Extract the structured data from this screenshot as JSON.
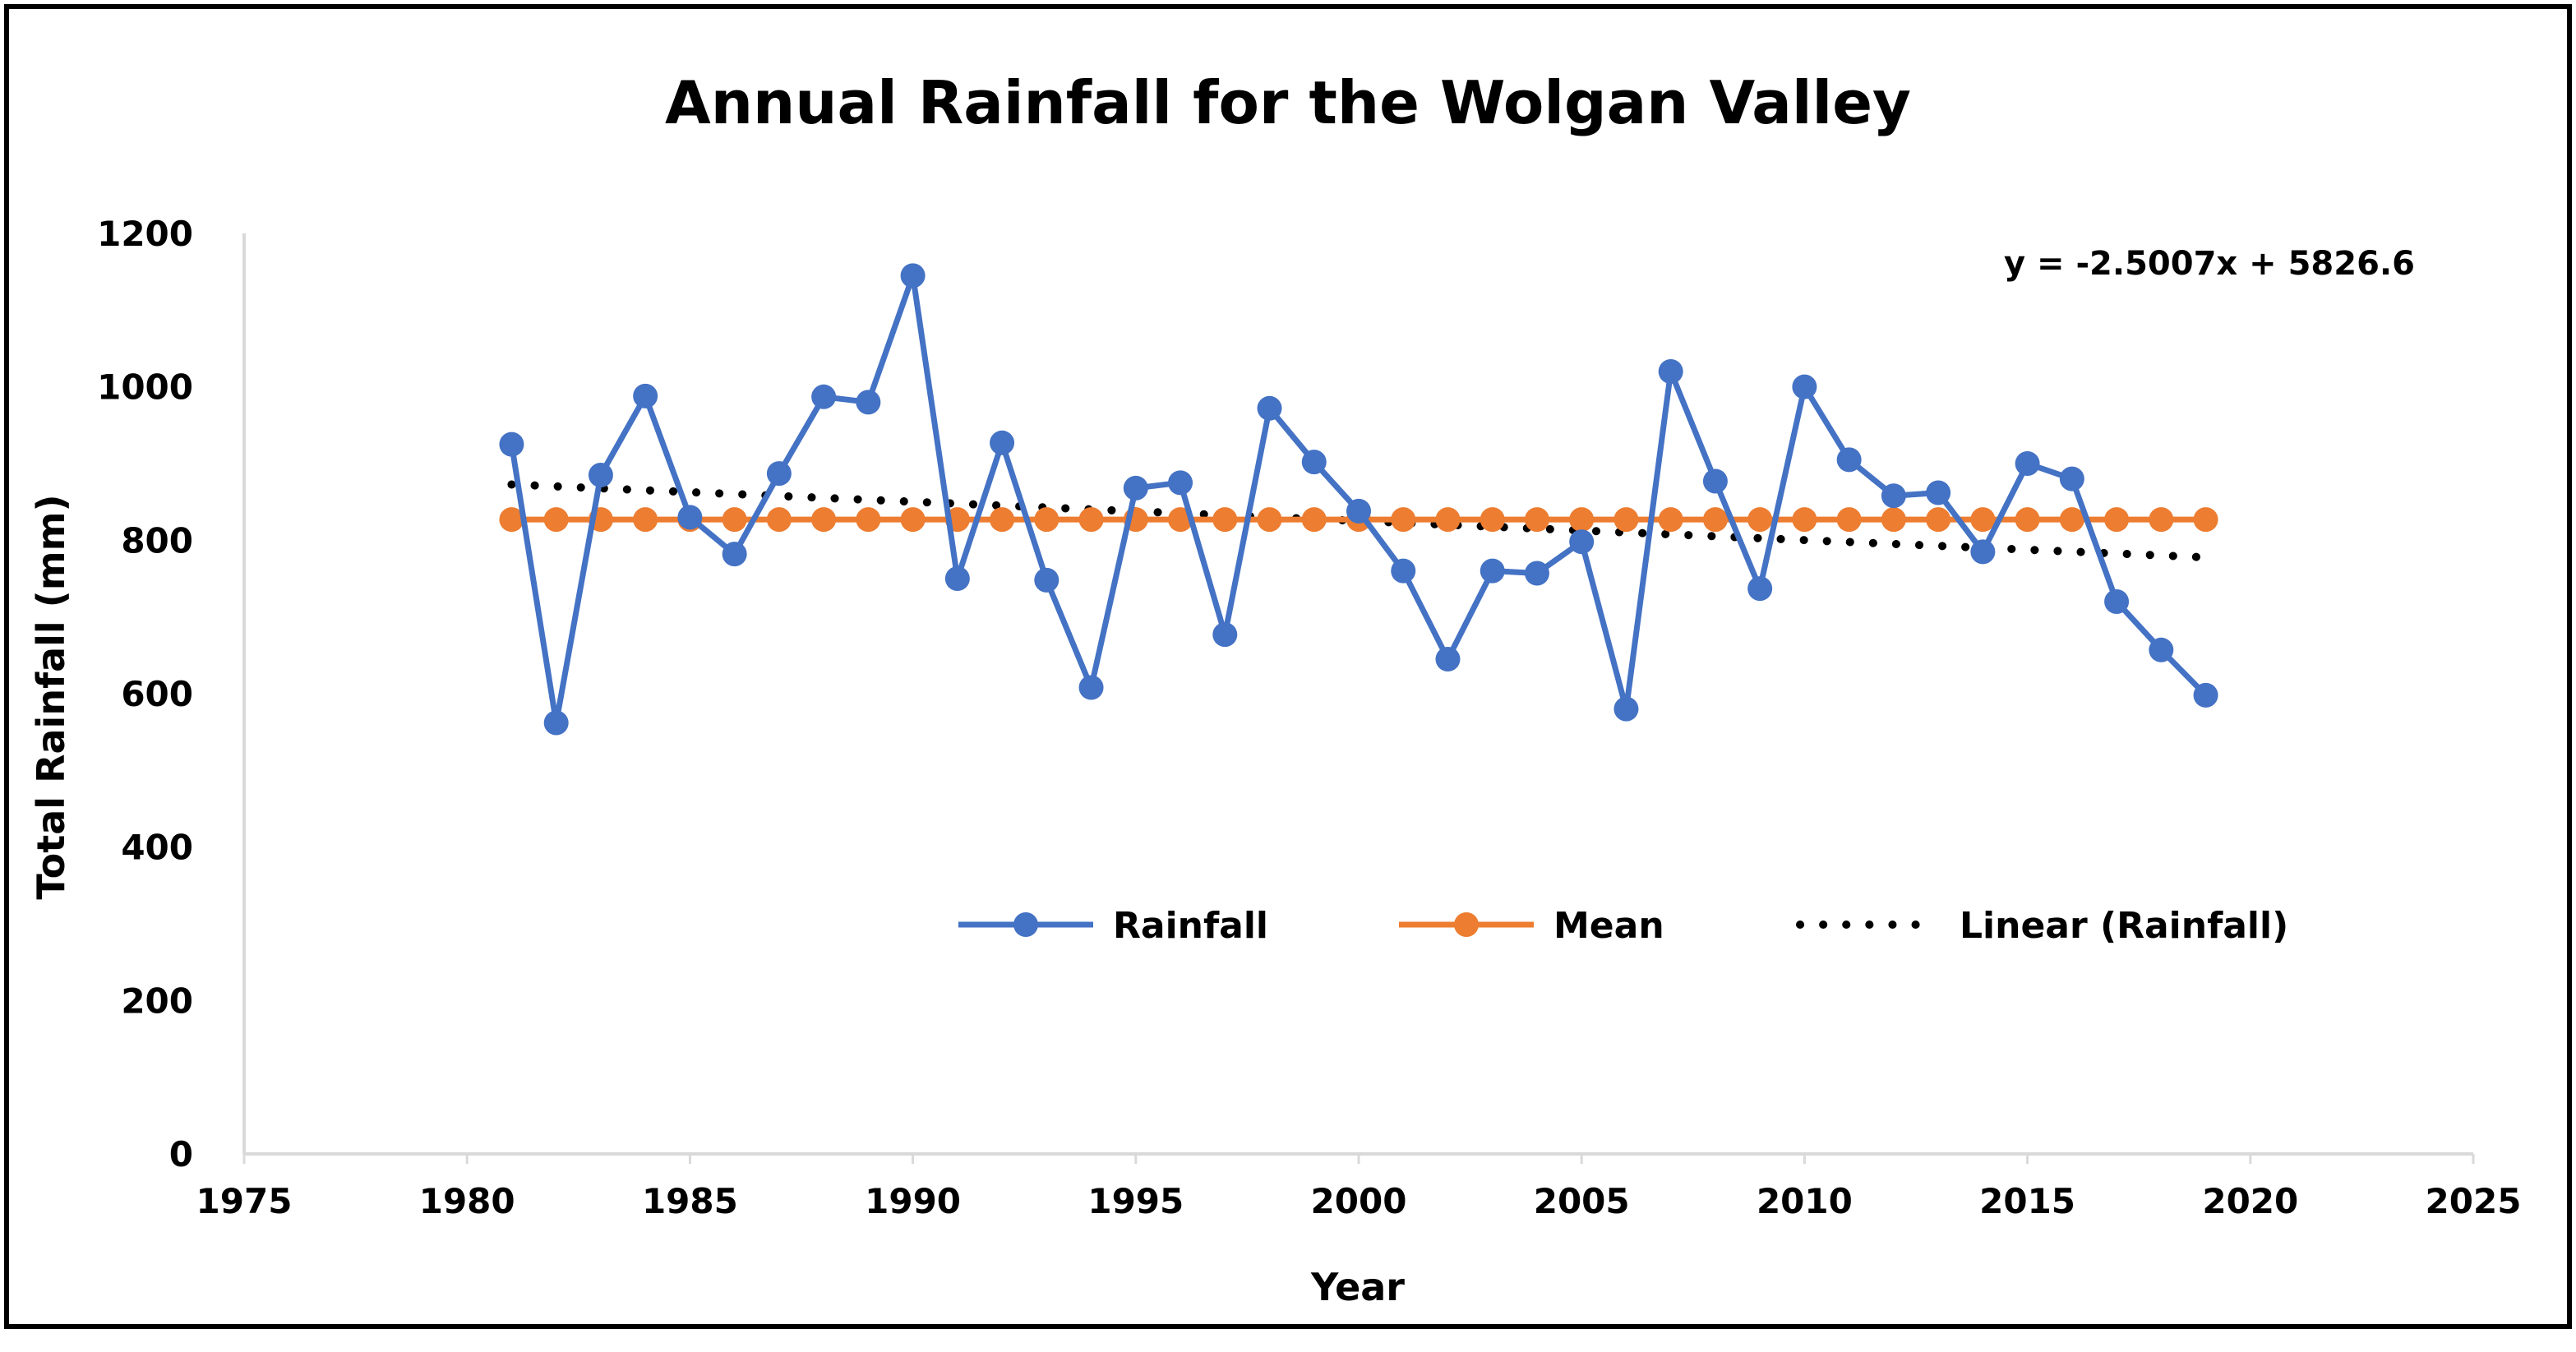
{
  "chart_data": {
    "type": "line",
    "title": "Annual Rainfall for the Wolgan Valley",
    "xlabel": "Year",
    "ylabel": "Total Rainfall (mm)",
    "xlim": [
      1975,
      2025
    ],
    "ylim": [
      0,
      1200
    ],
    "x_ticks": [
      1975,
      1980,
      1985,
      1990,
      1995,
      2000,
      2005,
      2010,
      2015,
      2020,
      2025
    ],
    "y_ticks": [
      0,
      200,
      400,
      600,
      800,
      1000,
      1200
    ],
    "x_tick_labels": [
      "1975",
      "1980",
      "1985",
      "1990",
      "1995",
      "2000",
      "2005",
      "2010",
      "2015",
      "2020",
      "2025"
    ],
    "y_tick_labels": [
      "0",
      "200",
      "400",
      "600",
      "800",
      "1000",
      "1200"
    ],
    "grid": false,
    "legend_position": "center",
    "trendline_equation": "y = -2.5007x + 5826.6",
    "trendline": {
      "slope": -2.5007,
      "intercept": 5826.6,
      "x_start": 1981,
      "x_end": 2019
    },
    "x": [
      1981,
      1982,
      1983,
      1984,
      1985,
      1986,
      1987,
      1988,
      1989,
      1990,
      1991,
      1992,
      1993,
      1994,
      1995,
      1996,
      1997,
      1998,
      1999,
      2000,
      2001,
      2002,
      2003,
      2004,
      2005,
      2006,
      2007,
      2008,
      2009,
      2010,
      2011,
      2012,
      2013,
      2014,
      2015,
      2016,
      2017,
      2018,
      2019
    ],
    "series": [
      {
        "name": "Rainfall",
        "color": "#4472C4",
        "marker": "circle",
        "values": [
          925,
          562,
          885,
          988,
          830,
          782,
          887,
          987,
          980,
          1145,
          750,
          927,
          748,
          608,
          868,
          875,
          677,
          972,
          902,
          838,
          760,
          645,
          760,
          757,
          798,
          580,
          1020,
          877,
          737,
          1000,
          905,
          858,
          862,
          785,
          900,
          880,
          720,
          657,
          598
        ]
      },
      {
        "name": "Mean",
        "color": "#ED7D31",
        "marker": "circle",
        "values": [
          827,
          827,
          827,
          827,
          827,
          827,
          827,
          827,
          827,
          827,
          827,
          827,
          827,
          827,
          827,
          827,
          827,
          827,
          827,
          827,
          827,
          827,
          827,
          827,
          827,
          827,
          827,
          827,
          827,
          827,
          827,
          827,
          827,
          827,
          827,
          827,
          827,
          827,
          827
        ]
      }
    ],
    "legend": [
      {
        "label": "Rainfall",
        "color": "#4472C4",
        "style": "line-marker"
      },
      {
        "label": "Mean",
        "color": "#ED7D31",
        "style": "line-marker"
      },
      {
        "label": "Linear (Rainfall)",
        "color": "#000000",
        "style": "dotted"
      }
    ],
    "colors": {
      "axis": "#D9D9D9",
      "frame": "#000000",
      "rainfall": "#4472C4",
      "mean": "#ED7D31",
      "trend": "#000000"
    }
  }
}
